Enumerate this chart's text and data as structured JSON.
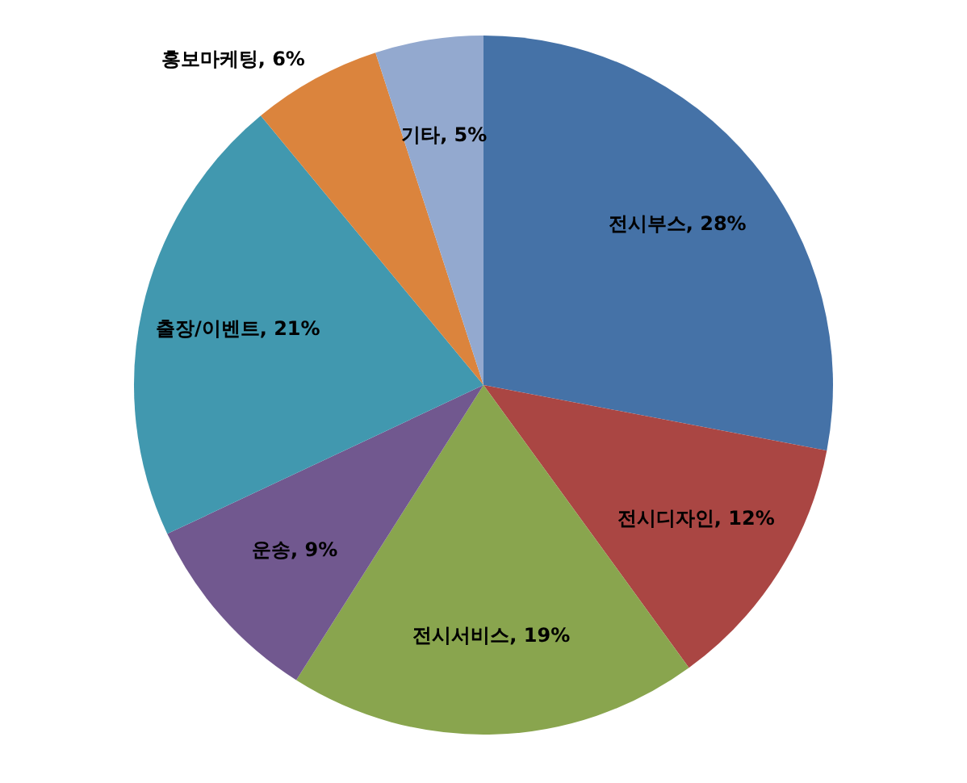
{
  "chart_data": {
    "type": "pie",
    "categories": [
      "전시부스",
      "전시디자인",
      "전시서비스",
      "운송",
      "출장/이벤트",
      "홍보마케팅",
      "기타"
    ],
    "values": [
      28,
      12,
      19,
      9,
      21,
      6,
      5
    ],
    "colors": [
      "#4572a7",
      "#aa4643",
      "#89a54e",
      "#71588f",
      "#4198af",
      "#db843d",
      "#93a9cf"
    ],
    "value_labels": [
      "28%",
      "12%",
      "19%",
      "9%",
      "21%",
      "6%",
      "5%"
    ],
    "legend": false
  }
}
